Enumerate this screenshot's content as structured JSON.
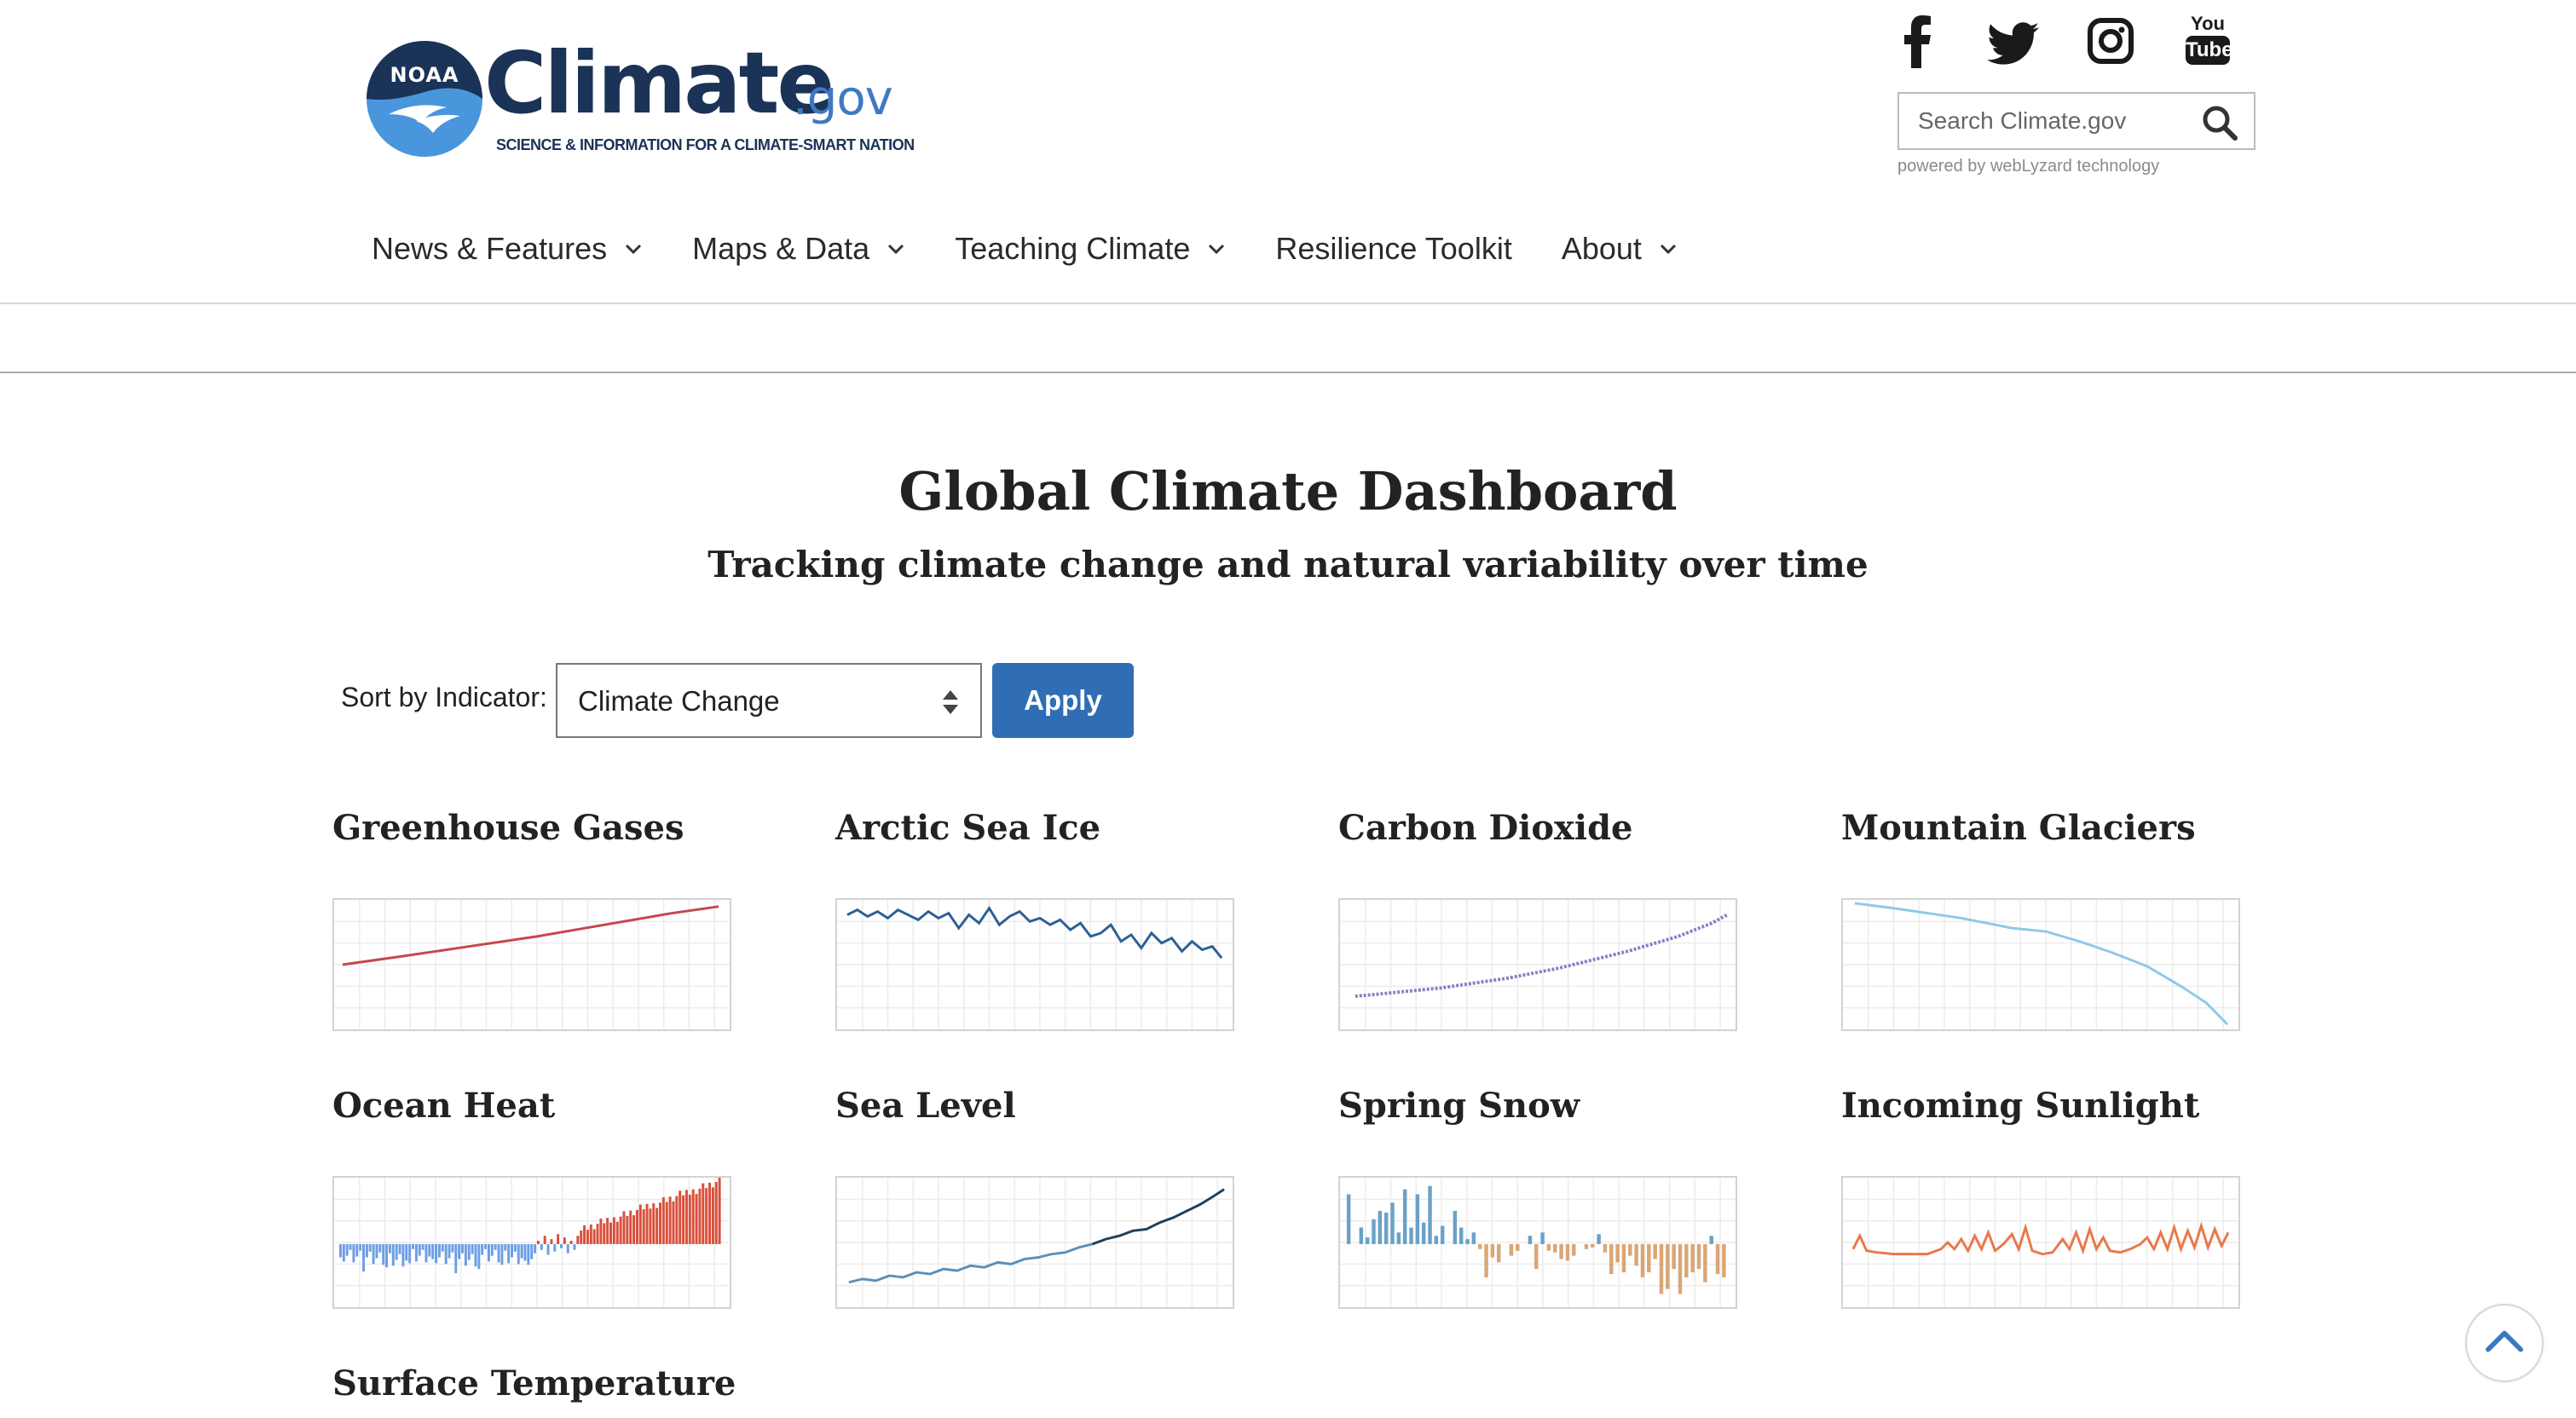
{
  "header": {
    "logo": {
      "seal_text": "NOAA",
      "word": "Climate",
      "suffix": ".gov",
      "tagline": "SCIENCE & INFORMATION FOR A CLIMATE-SMART NATION"
    },
    "social": [
      {
        "name": "facebook-icon"
      },
      {
        "name": "twitter-icon"
      },
      {
        "name": "instagram-icon"
      },
      {
        "name": "youtube-icon",
        "text_top": "You",
        "text_bottom": "Tube"
      }
    ],
    "search": {
      "placeholder": "Search Climate.gov",
      "powered_by": "powered by webLyzard technology"
    },
    "nav": [
      {
        "label": "News & Features",
        "has_dropdown": true
      },
      {
        "label": "Maps & Data",
        "has_dropdown": true
      },
      {
        "label": "Teaching Climate",
        "has_dropdown": true
      },
      {
        "label": "Resilience Toolkit",
        "has_dropdown": false
      },
      {
        "label": "About",
        "has_dropdown": true
      }
    ]
  },
  "main": {
    "title": "Global Climate Dashboard",
    "subtitle": "Tracking climate change and natural variability over time",
    "sort": {
      "label": "Sort by Indicator:",
      "selected": "Climate Change",
      "apply_label": "Apply"
    },
    "cards": [
      {
        "title": "Greenhouse Gases"
      },
      {
        "title": "Arctic Sea Ice"
      },
      {
        "title": "Carbon Dioxide"
      },
      {
        "title": "Mountain Glaciers"
      },
      {
        "title": "Ocean Heat"
      },
      {
        "title": "Sea Level"
      },
      {
        "title": "Spring Snow"
      },
      {
        "title": "Incoming Sunlight"
      },
      {
        "title": "Surface Temperature"
      }
    ]
  },
  "colors": {
    "brand_navy": "#1a3357",
    "brand_blue": "#3e79c2",
    "apply_button": "#2f6db5",
    "greenhouse_line": "#c8454c",
    "arctic_line": "#2c5f94",
    "co2_line": "#8e7cc3",
    "glacier_line": "#8fc8ea",
    "ocean_warm": "#d9503c",
    "ocean_cool": "#6d9ee6",
    "sealevel_line": "#5b8fb8",
    "snow_blue": "#6aa2c7",
    "snow_tan": "#d9a676",
    "sunlight_line": "#e9784a"
  }
}
